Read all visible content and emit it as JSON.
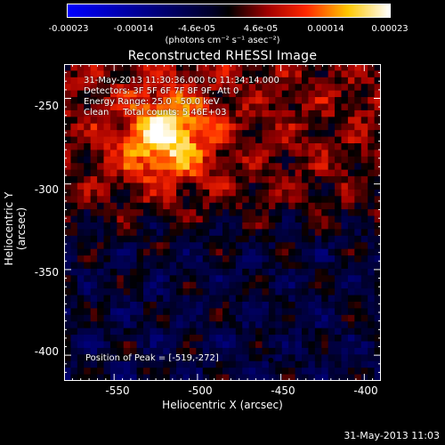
{
  "colorbar": {
    "ticks": [
      "-0.00023",
      "-0.00014",
      "-4.6e-05",
      "4.6e-05",
      "0.00014",
      "0.00023"
    ],
    "unit": "(photons cm⁻² s⁻¹ asec⁻²)",
    "range": [
      -0.00023,
      0.00023
    ]
  },
  "annotations": {
    "line1": "31-May-2013 11:30:36.000 to 11:34:14.000",
    "line2": "Detectors: 3F 5F 6F 7F 8F 9F, Att 0",
    "line3": "Energy Range: 25.0 - 50.0 keV",
    "line4": "Clean     Total counts: 5.46E+03",
    "peak": "Position of Peak = [-519,-272]"
  },
  "timestamp": "31-May-2013 11:03",
  "chart_data": {
    "type": "heatmap",
    "title": "Reconstructed RHESSI Image",
    "xlabel": "Heliocentric X (arcsec)",
    "ylabel": "Heliocentric Y (arcsec)",
    "xlim": [
      -580,
      -390
    ],
    "ylim": [
      -415,
      -230
    ],
    "xticks": [
      -550,
      -500,
      -450,
      -400
    ],
    "yticks": [
      -250,
      -300,
      -350,
      -400
    ],
    "peak": [
      -519,
      -272
    ],
    "grid": false
  }
}
